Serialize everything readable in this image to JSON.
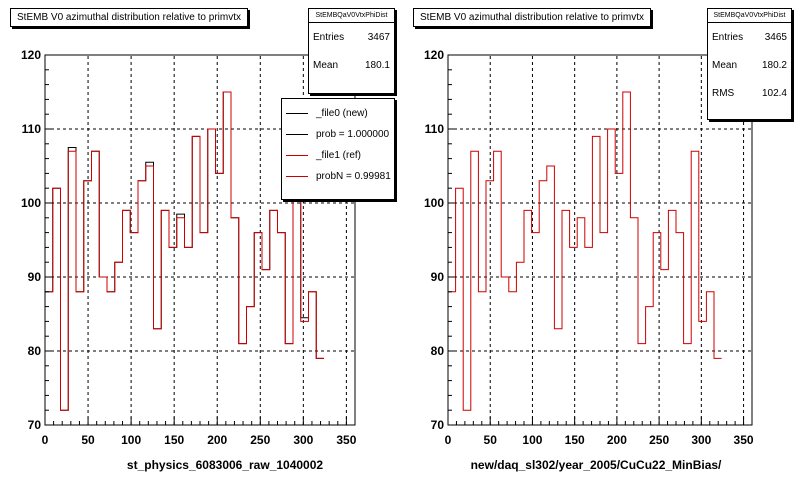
{
  "chart_data": [
    {
      "type": "histogram",
      "title": "StEMB V0 azimuthal distribution relative to primvtx",
      "xlabel": "st_physics_6083006_raw_1040002",
      "xlim": [
        0,
        360
      ],
      "ylim": [
        70,
        120
      ],
      "x_ticks": [
        0,
        50,
        100,
        150,
        200,
        250,
        300,
        350
      ],
      "y_ticks": [
        70,
        80,
        90,
        100,
        110,
        120
      ],
      "grid": true,
      "bin_width": 9,
      "series": [
        {
          "name": "_file0 (new)",
          "color": "#000000",
          "values": [
            88,
            102,
            72,
            107.5,
            88,
            103,
            107,
            90,
            88,
            92,
            99,
            96,
            103,
            105.5,
            83,
            99,
            94,
            98.5,
            94,
            109,
            96,
            110,
            104,
            115,
            98,
            81,
            86,
            96,
            91,
            99,
            96,
            81,
            107,
            84.5,
            88,
            79
          ]
        },
        {
          "name": "_file1 (ref)",
          "color": "#cc0000",
          "values": [
            88,
            102,
            72,
            107,
            88,
            103,
            107,
            90,
            88,
            92,
            99,
            96,
            103,
            105,
            83,
            99,
            94,
            98,
            94,
            109,
            96,
            110,
            104,
            115,
            98,
            81,
            86,
            96,
            91,
            99,
            96,
            81,
            107,
            84,
            88,
            79
          ]
        }
      ],
      "stats": {
        "name": "StEMBQaV0VtxPhiDist",
        "entries": "3467",
        "mean": "180.1"
      },
      "legend": [
        {
          "label": "_file0 (new)",
          "color": "#000000"
        },
        {
          "label": "prob = 1.000000",
          "color": "#000000"
        },
        {
          "label": "_file1 (ref)",
          "color": "#cc0000"
        },
        {
          "label": "probN = 0.99981",
          "color": "#cc0000"
        }
      ]
    },
    {
      "type": "histogram",
      "title": "StEMB V0 azimuthal distribution relative to primvtx",
      "xlabel": "new/daq_sl302/year_2005/CuCu22_MinBias/",
      "xlim": [
        0,
        360
      ],
      "ylim": [
        70,
        120
      ],
      "x_ticks": [
        0,
        50,
        100,
        150,
        200,
        250,
        300,
        350
      ],
      "y_ticks": [
        70,
        80,
        90,
        100,
        110,
        120
      ],
      "grid": true,
      "bin_width": 9,
      "series": [
        {
          "name": "",
          "color": "#cc0000",
          "values": [
            88,
            102,
            72,
            107,
            88,
            103,
            107,
            90,
            88,
            92,
            99,
            96,
            103,
            105,
            83,
            99,
            94,
            98,
            94,
            109,
            96,
            110,
            104,
            115,
            98,
            81,
            86,
            96,
            91,
            99,
            96,
            81,
            107,
            84,
            88,
            79
          ]
        }
      ],
      "stats": {
        "name": "StEMBQaV0VtxPhiDist",
        "entries": "3465",
        "mean": "180.2",
        "rms": "102.4"
      }
    }
  ],
  "labels": {
    "entries": "Entries",
    "mean": "Mean",
    "rms": "RMS"
  }
}
